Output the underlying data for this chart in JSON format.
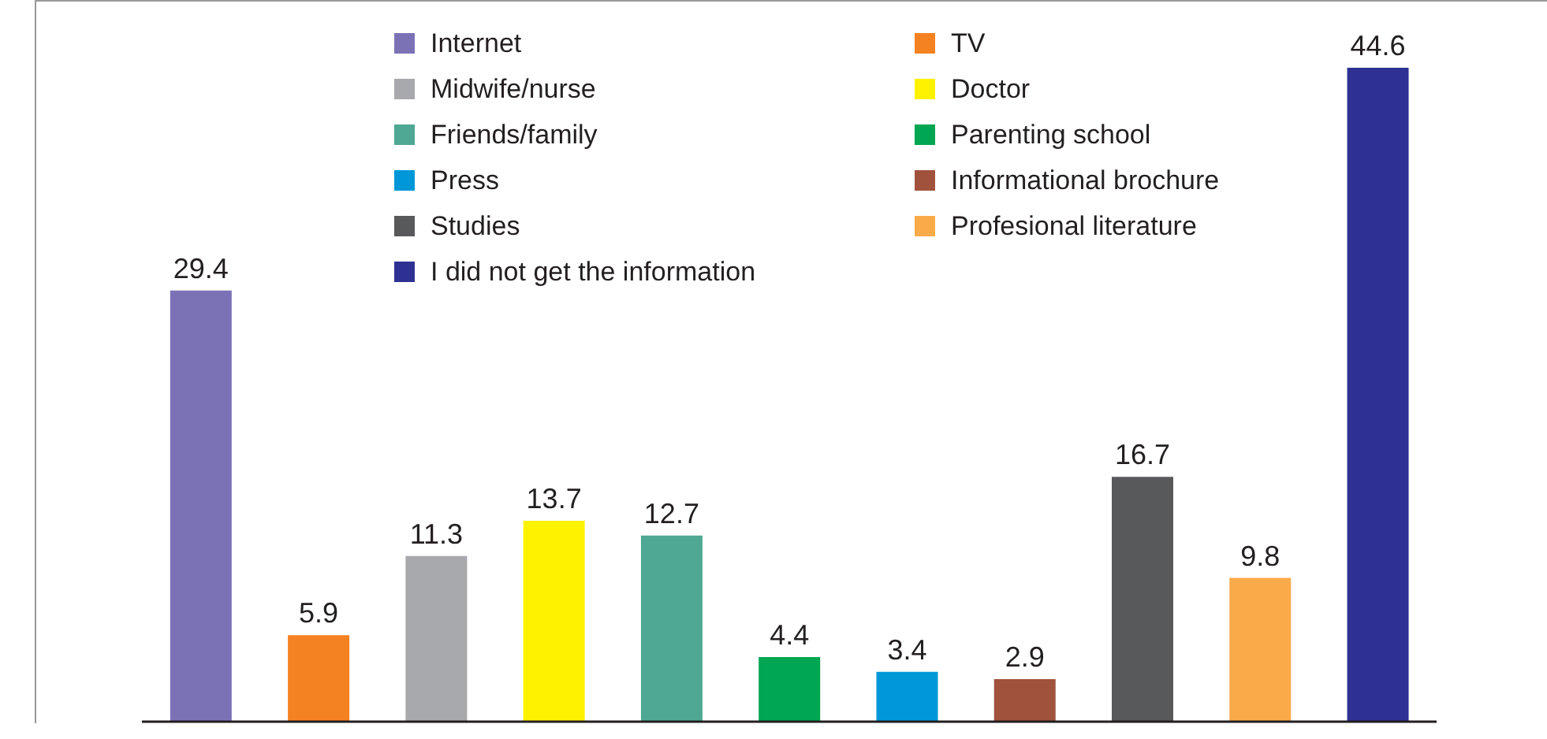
{
  "chart_data": {
    "type": "bar",
    "stacked": true,
    "categories": [
      null,
      null,
      null,
      null,
      null,
      null,
      null,
      null,
      null,
      null,
      null
    ],
    "series": [
      {
        "name": "Internet",
        "color": "#7b72b6",
        "values": [
          29.4,
          null,
          null,
          null,
          null,
          null,
          null,
          null,
          null,
          null,
          null
        ]
      },
      {
        "name": "TV",
        "color": "#f58220",
        "values": [
          null,
          5.9,
          null,
          null,
          null,
          null,
          null,
          null,
          null,
          null,
          null
        ]
      },
      {
        "name": "Midwife/nurse",
        "color": "#a7a9ac",
        "values": [
          null,
          null,
          11.3,
          null,
          null,
          null,
          null,
          null,
          null,
          null,
          null
        ]
      },
      {
        "name": "Doctor",
        "color": "#fff200",
        "values": [
          null,
          null,
          null,
          13.7,
          null,
          null,
          null,
          null,
          null,
          null,
          null
        ]
      },
      {
        "name": "Friends/family",
        "color": "#4fa893",
        "values": [
          null,
          null,
          null,
          null,
          12.7,
          null,
          null,
          null,
          null,
          null,
          null
        ]
      },
      {
        "name": "Parenting school",
        "color": "#00a651",
        "values": [
          null,
          null,
          null,
          null,
          null,
          4.4,
          null,
          null,
          null,
          null,
          null
        ]
      },
      {
        "name": "Press",
        "color": "#0097d8",
        "values": [
          null,
          null,
          null,
          null,
          null,
          null,
          3.4,
          null,
          null,
          null,
          null
        ]
      },
      {
        "name": "Informational brochure",
        "color": "#a0523d",
        "values": [
          null,
          null,
          null,
          null,
          null,
          null,
          null,
          2.9,
          null,
          null,
          null
        ]
      },
      {
        "name": "Studies",
        "color": "#58595b",
        "values": [
          null,
          null,
          null,
          null,
          null,
          null,
          null,
          null,
          16.7,
          null,
          null
        ]
      },
      {
        "name": "Profesional literature",
        "color": "#fbaa4a",
        "values": [
          null,
          null,
          null,
          null,
          null,
          null,
          null,
          null,
          null,
          9.8,
          null
        ]
      },
      {
        "name": "I did not get the information",
        "color": "#2e3192",
        "values": [
          null,
          null,
          null,
          null,
          null,
          null,
          null,
          null,
          null,
          null,
          44.6
        ]
      }
    ],
    "data_labels": true,
    "legend": "top"
  }
}
